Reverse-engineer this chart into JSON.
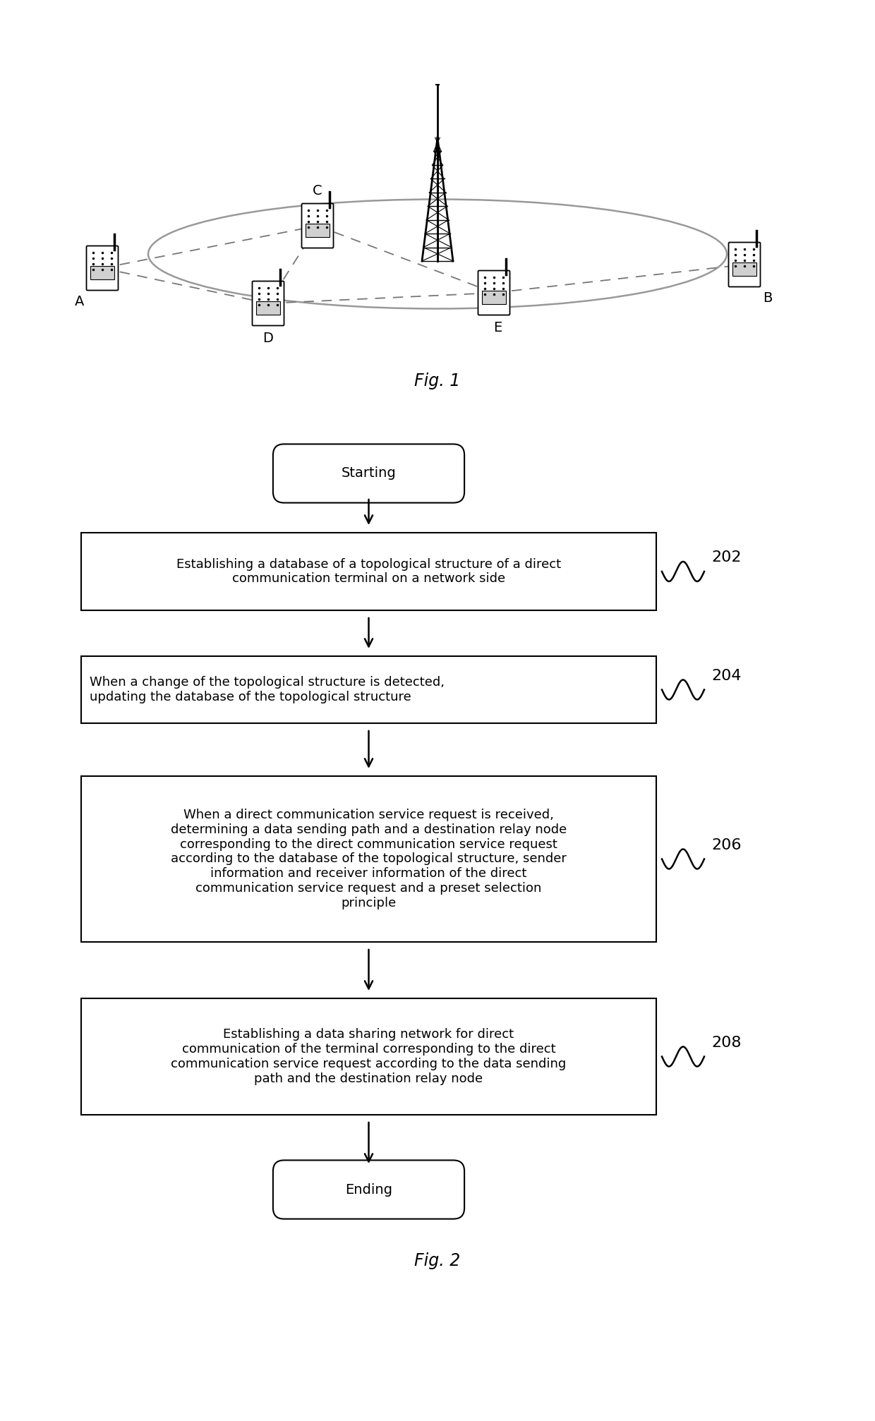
{
  "fig_width": 12.4,
  "fig_height": 20.14,
  "bg_color": "#ffffff",
  "fig1_label": "Fig. 1",
  "fig2_label": "Fig. 2",
  "flowchart": {
    "start_label": "Starting",
    "end_label": "Ending",
    "boxes": [
      {
        "label": "Establishing a database of a topological structure of a direct\ncommunication terminal on a network side",
        "step": "202"
      },
      {
        "label": "When a change of the topological structure is detected,\nupdating the database of the topological structure",
        "step": "204"
      },
      {
        "label": "When a direct communication service request is received,\ndetermining a data sending path and a destination relay node\ncorresponding to the direct communication service request\naccording to the database of the topological structure, sender\ninformation and receiver information of the direct\ncommunication service request and a preset selection\nprinciple",
        "step": "206"
      },
      {
        "label": "Establishing a data sharing network for direct\ncommunication of the terminal corresponding to the direct\ncommunication service request according to the data sending\npath and the destination relay node",
        "step": "208"
      }
    ]
  }
}
